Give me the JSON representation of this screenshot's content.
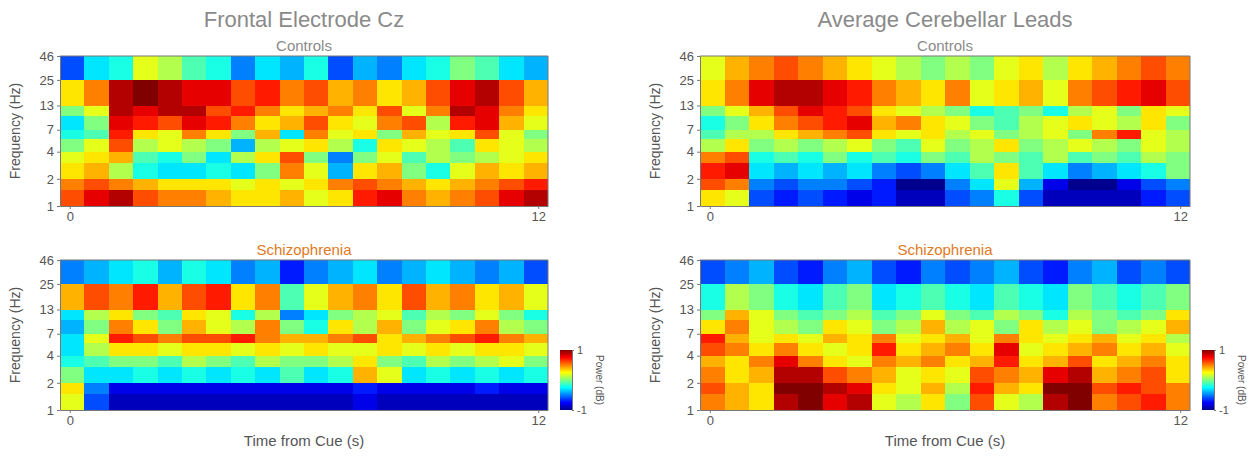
{
  "chart_data": [
    {
      "type": "heatmap",
      "column_title": "Frontal Electrode Cz",
      "title": "Controls",
      "ylabel": "Frequency (Hz)",
      "log": "y",
      "xlim": [
        -0.25,
        12.25
      ],
      "xticks": [
        0,
        12
      ],
      "ylim": [
        1,
        46
      ],
      "yticks": [
        1,
        2,
        4,
        7,
        13,
        25,
        46
      ],
      "zlim": [
        -1,
        1
      ],
      "x_bins": [
        -0.25,
        0.375,
        1,
        1.625,
        2.25,
        2.875,
        3.5,
        4.125,
        4.75,
        5.375,
        6,
        6.625,
        7.25,
        7.875,
        8.5,
        9.125,
        9.75,
        10.375,
        11,
        11.625,
        12.25
      ],
      "y_bins": [
        1,
        1.5,
        2,
        3,
        4,
        5.5,
        7,
        10,
        13,
        25,
        46
      ],
      "values": [
        [
          0.6,
          0.8,
          0.9,
          0.6,
          0.5,
          0.5,
          0.4,
          0.3,
          0.3,
          0.4,
          0.2,
          0.3,
          0.7,
          0.8,
          0.5,
          0.4,
          0.5,
          0.6,
          0.8,
          0.9
        ],
        [
          0.5,
          0.6,
          0.5,
          0.4,
          0.3,
          0.3,
          0.3,
          0.2,
          0.3,
          0.2,
          0.3,
          0.5,
          0.6,
          0.5,
          0.4,
          0.3,
          0.4,
          0.5,
          0.6,
          0.7
        ],
        [
          0.3,
          0.4,
          0.1,
          -0.2,
          -0.3,
          -0.3,
          -0.2,
          -0.3,
          0.0,
          0.5,
          0.2,
          -0.4,
          0.3,
          0.4,
          0.0,
          -0.2,
          0.2,
          0.4,
          0.3,
          0.4
        ],
        [
          0.2,
          0.3,
          0.4,
          -0.1,
          -0.2,
          0.0,
          -0.3,
          0.1,
          0.3,
          0.6,
          0.0,
          -0.5,
          0.0,
          0.2,
          -0.1,
          0.1,
          0.0,
          0.1,
          0.2,
          0.3
        ],
        [
          0.0,
          0.2,
          0.6,
          0.1,
          0.2,
          0.1,
          0.0,
          -0.4,
          0.1,
          0.2,
          0.3,
          0.1,
          -0.2,
          0.3,
          0.2,
          0.1,
          -0.1,
          0.3,
          0.2,
          0.1
        ],
        [
          -0.2,
          -0.1,
          0.7,
          0.3,
          0.2,
          0.5,
          0.3,
          0.0,
          0.4,
          -0.3,
          0.5,
          0.2,
          0.3,
          0.0,
          0.4,
          0.2,
          0.3,
          0.6,
          0.2,
          0.0
        ],
        [
          -0.3,
          0.0,
          0.8,
          0.7,
          0.6,
          0.8,
          0.7,
          0.5,
          0.3,
          0.4,
          0.6,
          0.3,
          0.2,
          0.5,
          0.6,
          0.1,
          0.7,
          0.8,
          0.4,
          0.2
        ],
        [
          0.0,
          0.2,
          0.9,
          0.8,
          0.9,
          0.9,
          0.6,
          0.7,
          0.5,
          0.3,
          0.4,
          0.5,
          0.3,
          0.6,
          0.2,
          0.5,
          0.9,
          0.8,
          0.5,
          0.3
        ],
        [
          0.3,
          0.5,
          0.9,
          1.0,
          0.9,
          0.8,
          0.8,
          0.6,
          0.7,
          0.5,
          0.6,
          0.4,
          0.5,
          0.3,
          0.4,
          0.6,
          0.8,
          0.9,
          0.6,
          0.4
        ],
        [
          -0.6,
          -0.3,
          -0.2,
          0.2,
          0.1,
          -0.1,
          -0.2,
          -0.5,
          -0.3,
          -0.4,
          -0.2,
          -0.6,
          -0.4,
          -0.5,
          -0.3,
          -0.2,
          0.0,
          -0.1,
          -0.3,
          -0.4
        ]
      ]
    },
    {
      "type": "heatmap",
      "title": "Schizophrenia",
      "xlabel": "Time from Cue (s)",
      "ylabel": "Frequency (Hz)",
      "log": "y",
      "xlim": [
        -0.25,
        12.25
      ],
      "xticks": [
        0,
        12
      ],
      "ylim": [
        1,
        46
      ],
      "yticks": [
        1,
        2,
        4,
        7,
        13,
        25,
        46
      ],
      "zlim": [
        -1,
        1
      ],
      "colorbar": {
        "ticks": [
          -1,
          1
        ],
        "label": "Power (dB)"
      },
      "x_bins": [
        -0.25,
        0.375,
        1,
        1.625,
        2.25,
        2.875,
        3.5,
        4.125,
        4.75,
        5.375,
        6,
        6.625,
        7.25,
        7.875,
        8.5,
        9.125,
        9.75,
        10.375,
        11,
        11.625,
        12.25
      ],
      "y_bins": [
        1,
        1.5,
        2,
        3,
        4,
        5.5,
        7,
        10,
        13,
        25,
        46
      ],
      "values": [
        [
          0.2,
          -0.6,
          -0.9,
          -0.9,
          -0.9,
          -0.9,
          -0.9,
          -0.9,
          -0.9,
          -0.9,
          -0.9,
          -0.9,
          -0.8,
          -0.9,
          -0.9,
          -0.9,
          -0.9,
          -0.9,
          -0.9,
          -0.9
        ],
        [
          0.3,
          -0.5,
          -0.8,
          -0.8,
          -0.8,
          -0.8,
          -0.8,
          -0.8,
          -0.8,
          -0.8,
          -0.8,
          -0.8,
          -0.7,
          -0.8,
          -0.8,
          -0.8,
          -0.8,
          -0.7,
          -0.8,
          -0.8
        ],
        [
          0.0,
          -0.3,
          -0.3,
          -0.2,
          -0.3,
          -0.2,
          -0.3,
          -0.2,
          -0.3,
          -0.1,
          -0.3,
          -0.2,
          0.4,
          0.2,
          -0.3,
          -0.2,
          -0.3,
          -0.2,
          -0.3,
          -0.2
        ],
        [
          -0.2,
          -0.1,
          0.0,
          0.0,
          -0.1,
          0.1,
          0.0,
          -0.1,
          0.1,
          0.0,
          0.0,
          0.1,
          0.3,
          0.0,
          -0.1,
          0.1,
          0.0,
          0.1,
          0.2,
          0.0
        ],
        [
          -0.3,
          0.1,
          0.3,
          0.3,
          0.2,
          0.3,
          0.3,
          0.2,
          0.3,
          0.2,
          0.3,
          0.2,
          0.2,
          0.3,
          0.2,
          0.3,
          0.2,
          0.3,
          0.3,
          0.2
        ],
        [
          -0.3,
          0.2,
          0.7,
          0.6,
          0.5,
          0.6,
          0.6,
          0.7,
          0.5,
          0.4,
          0.4,
          0.5,
          0.6,
          0.3,
          0.4,
          0.5,
          0.6,
          0.7,
          0.5,
          0.4
        ],
        [
          -0.4,
          0.0,
          0.5,
          0.3,
          0.0,
          0.4,
          0.2,
          0.1,
          0.5,
          0.0,
          -0.2,
          0.3,
          0.1,
          0.4,
          0.0,
          0.2,
          0.3,
          0.5,
          0.1,
          0.0
        ],
        [
          -0.3,
          0.1,
          0.3,
          0.0,
          -0.1,
          0.3,
          0.2,
          -0.2,
          0.1,
          -0.5,
          -0.3,
          0.0,
          0.1,
          0.2,
          -0.1,
          0.1,
          0.0,
          0.2,
          0.0,
          -0.2
        ],
        [
          0.4,
          0.6,
          0.5,
          0.7,
          0.4,
          0.6,
          0.7,
          0.3,
          0.5,
          -0.1,
          0.2,
          0.4,
          0.5,
          0.3,
          0.6,
          0.4,
          0.5,
          0.3,
          0.4,
          0.2
        ],
        [
          -0.5,
          -0.4,
          -0.3,
          -0.2,
          -0.4,
          -0.2,
          -0.3,
          -0.5,
          -0.4,
          -0.7,
          -0.5,
          -0.4,
          -0.3,
          -0.5,
          -0.4,
          -0.3,
          -0.4,
          -0.5,
          -0.4,
          -0.6
        ]
      ]
    },
    {
      "type": "heatmap",
      "column_title": "Average Cerebellar Leads",
      "title": "Controls",
      "ylabel": "Frequency (Hz)",
      "log": "y",
      "xlim": [
        -0.25,
        12.25
      ],
      "xticks": [
        0,
        12
      ],
      "ylim": [
        1,
        46
      ],
      "yticks": [
        1,
        2,
        4,
        7,
        13,
        25,
        46
      ],
      "zlim": [
        -1,
        1
      ],
      "x_bins": [
        -0.25,
        0.375,
        1,
        1.625,
        2.25,
        2.875,
        3.5,
        4.125,
        4.75,
        5.375,
        6,
        6.625,
        7.25,
        7.875,
        8.5,
        9.125,
        9.75,
        10.375,
        11,
        11.625,
        12.25
      ],
      "y_bins": [
        1,
        1.5,
        2,
        3,
        4,
        5.5,
        7,
        10,
        13,
        25,
        46
      ],
      "values": [
        [
          0.3,
          0.2,
          -0.6,
          -0.7,
          -0.6,
          -0.7,
          -0.8,
          -0.7,
          -0.9,
          -0.9,
          -0.6,
          -0.5,
          -0.2,
          -0.6,
          -0.9,
          -0.9,
          -0.9,
          -0.9,
          -0.7,
          -0.6
        ],
        [
          0.6,
          0.5,
          -0.5,
          -0.6,
          -0.5,
          -0.5,
          -0.6,
          -0.7,
          -1.0,
          -1.0,
          -0.5,
          -0.3,
          0.2,
          -0.4,
          -0.8,
          -1.0,
          -1.0,
          -0.8,
          -0.6,
          -0.5
        ],
        [
          0.7,
          0.8,
          -0.3,
          -0.4,
          -0.3,
          -0.4,
          -0.3,
          -0.5,
          -0.6,
          -0.5,
          -0.3,
          -0.1,
          0.3,
          -0.1,
          -0.3,
          -0.5,
          -0.4,
          -0.3,
          -0.2,
          0.0
        ],
        [
          0.5,
          0.6,
          -0.2,
          -0.1,
          -0.2,
          0.0,
          -0.2,
          -0.1,
          -0.2,
          0.0,
          -0.1,
          0.1,
          0.0,
          -0.1,
          0.1,
          -0.1,
          0.0,
          -0.1,
          0.1,
          0.0
        ],
        [
          0.1,
          0.3,
          0.0,
          0.1,
          0.0,
          0.1,
          0.2,
          0.0,
          -0.1,
          0.2,
          0.0,
          0.1,
          0.3,
          0.0,
          0.1,
          0.2,
          0.1,
          0.0,
          0.2,
          0.1
        ],
        [
          -0.1,
          0.1,
          0.1,
          0.3,
          0.4,
          0.5,
          0.6,
          0.3,
          0.2,
          0.3,
          0.1,
          0.2,
          0.0,
          0.1,
          0.2,
          0.0,
          0.5,
          0.7,
          0.2,
          0.1
        ],
        [
          -0.2,
          0.0,
          0.3,
          0.5,
          0.6,
          0.7,
          0.8,
          0.4,
          0.5,
          0.3,
          0.2,
          0.0,
          -0.1,
          0.1,
          0.2,
          0.3,
          0.2,
          0.1,
          0.3,
          0.0
        ],
        [
          0.0,
          0.2,
          0.4,
          0.6,
          0.8,
          0.7,
          0.6,
          0.3,
          0.2,
          0.1,
          0.0,
          -0.2,
          -0.1,
          0.0,
          -0.2,
          0.1,
          0.2,
          0.0,
          0.3,
          0.2
        ],
        [
          0.3,
          0.5,
          0.8,
          0.9,
          0.9,
          0.8,
          0.7,
          0.5,
          0.4,
          0.3,
          0.5,
          0.2,
          0.3,
          0.4,
          0.2,
          0.5,
          0.6,
          0.7,
          0.8,
          0.6
        ],
        [
          0.2,
          0.4,
          0.5,
          0.6,
          0.5,
          0.4,
          0.3,
          0.2,
          0.1,
          0.0,
          0.1,
          0.0,
          0.2,
          0.3,
          0.1,
          0.3,
          0.4,
          0.5,
          0.6,
          0.5
        ]
      ]
    },
    {
      "type": "heatmap",
      "title": "Schizophrenia",
      "xlabel": "Time from Cue (s)",
      "ylabel": "Frequency (Hz)",
      "log": "y",
      "xlim": [
        -0.25,
        12.25
      ],
      "xticks": [
        0,
        12
      ],
      "ylim": [
        1,
        46
      ],
      "yticks": [
        1,
        2,
        4,
        7,
        13,
        25,
        46
      ],
      "zlim": [
        -1,
        1
      ],
      "colorbar": {
        "ticks": [
          -1,
          1
        ],
        "label": "Power (dB)"
      },
      "x_bins": [
        -0.25,
        0.375,
        1,
        1.625,
        2.25,
        2.875,
        3.5,
        4.125,
        4.75,
        5.375,
        6,
        6.625,
        7.25,
        7.875,
        8.5,
        9.125,
        9.75,
        10.375,
        11,
        11.625,
        12.25
      ],
      "y_bins": [
        1,
        1.5,
        2,
        3,
        4,
        5.5,
        7,
        10,
        13,
        25,
        46
      ],
      "values": [
        [
          0.5,
          0.4,
          0.3,
          0.9,
          1.0,
          0.8,
          0.9,
          0.2,
          0.1,
          0.3,
          0.0,
          0.6,
          0.2,
          0.1,
          0.9,
          1.0,
          0.5,
          0.6,
          0.7,
          0.5
        ],
        [
          0.6,
          0.4,
          0.3,
          1.0,
          1.0,
          0.9,
          0.8,
          0.3,
          0.2,
          0.4,
          0.1,
          0.7,
          0.4,
          0.3,
          1.0,
          1.0,
          0.6,
          0.7,
          0.6,
          0.5
        ],
        [
          0.5,
          0.3,
          0.4,
          0.9,
          0.9,
          0.6,
          0.5,
          0.4,
          0.2,
          0.3,
          0.2,
          0.6,
          0.5,
          0.4,
          0.8,
          0.9,
          0.4,
          0.5,
          0.6,
          0.3
        ],
        [
          0.4,
          0.3,
          0.5,
          0.8,
          0.5,
          0.3,
          0.2,
          0.5,
          0.4,
          0.5,
          0.3,
          0.4,
          0.7,
          0.3,
          0.4,
          0.6,
          0.3,
          0.4,
          0.5,
          0.3
        ],
        [
          0.6,
          0.5,
          0.3,
          0.5,
          0.3,
          0.2,
          0.3,
          0.7,
          0.3,
          0.4,
          0.5,
          0.3,
          0.8,
          0.2,
          0.3,
          0.4,
          0.5,
          0.3,
          0.4,
          0.2
        ],
        [
          0.7,
          0.4,
          0.2,
          0.3,
          0.2,
          0.4,
          0.3,
          0.5,
          0.2,
          0.3,
          0.4,
          0.2,
          0.5,
          0.3,
          0.2,
          0.3,
          0.4,
          0.2,
          0.3,
          0.1
        ],
        [
          0.3,
          0.5,
          0.2,
          0.1,
          0.0,
          0.3,
          0.2,
          0.0,
          0.1,
          0.4,
          0.1,
          0.2,
          0.0,
          0.3,
          0.1,
          0.2,
          0.0,
          0.1,
          0.2,
          0.4
        ],
        [
          0.0,
          0.4,
          0.2,
          0.0,
          -0.1,
          0.0,
          0.1,
          -0.1,
          0.0,
          0.2,
          0.0,
          -0.1,
          0.1,
          0.0,
          -0.2,
          0.1,
          0.0,
          -0.1,
          0.0,
          0.3
        ],
        [
          -0.2,
          0.1,
          0.0,
          -0.2,
          -0.3,
          -0.1,
          0.0,
          -0.3,
          -0.2,
          -0.1,
          -0.2,
          -0.3,
          -0.1,
          -0.2,
          -0.3,
          0.0,
          -0.1,
          -0.2,
          -0.1,
          0.0
        ],
        [
          -0.6,
          -0.5,
          -0.4,
          -0.6,
          -0.7,
          -0.5,
          -0.4,
          -0.6,
          -0.7,
          -0.5,
          -0.6,
          -0.5,
          -0.4,
          -0.6,
          -0.7,
          -0.5,
          -0.4,
          -0.6,
          -0.5,
          -0.6
        ]
      ]
    }
  ]
}
